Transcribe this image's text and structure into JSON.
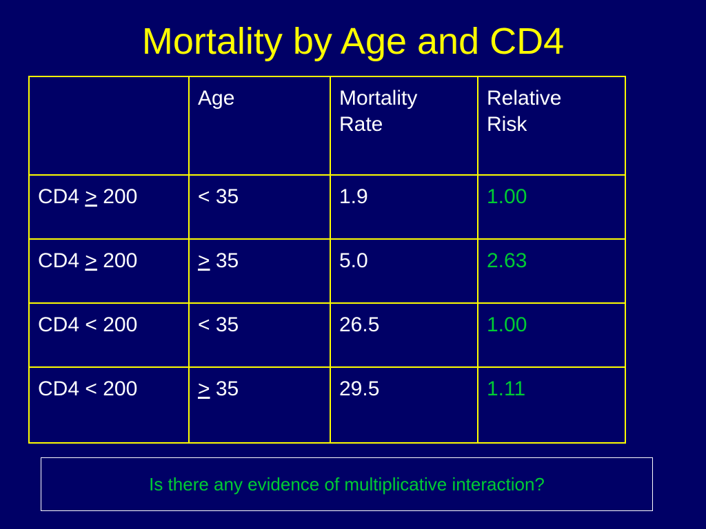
{
  "slide": {
    "title": "Mortality by Age and CD4"
  },
  "table": {
    "header": {
      "col1": "",
      "col2": "Age",
      "col3_line1": "Mortality",
      "col3_line2": "Rate",
      "col4_line1": "Relative",
      "col4_line2": "Risk"
    },
    "rows": [
      {
        "cd4_prefix": "CD4 ",
        "cd4_op": ">",
        "cd4_value": " 200",
        "age_op": "<",
        "age_value": " 35",
        "mortality_rate": "1.9",
        "relative_risk": "1.00"
      },
      {
        "cd4_prefix": "CD4 ",
        "cd4_op": ">",
        "cd4_value": " 200",
        "age_op": ">",
        "age_value": " 35",
        "mortality_rate": "5.0",
        "relative_risk": "2.63"
      },
      {
        "cd4_prefix": "CD4 ",
        "cd4_op": "<",
        "cd4_value": " 200",
        "age_op": "<",
        "age_value": " 35",
        "mortality_rate": "26.5",
        "relative_risk": "1.00"
      },
      {
        "cd4_prefix": "CD4 ",
        "cd4_op": "<",
        "cd4_value": " 200",
        "age_op": ">",
        "age_value": " 35",
        "mortality_rate": "29.5",
        "relative_risk": "1.11"
      }
    ]
  },
  "question": {
    "text": "Is there any evidence of multiplicative interaction?"
  },
  "colors": {
    "background": "#000066",
    "title": "#FFFF00",
    "table_border": "#FFFF00",
    "text": "#FFFFFF",
    "relative_risk": "#00CC33",
    "question_text": "#00CC33",
    "question_border": "#FFFFFF"
  }
}
